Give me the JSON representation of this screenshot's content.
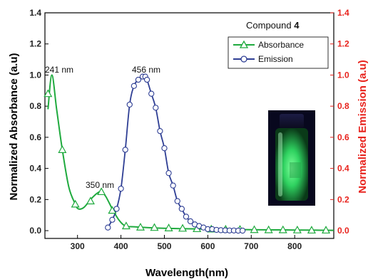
{
  "chart_data": {
    "type": "line",
    "title": "Compound",
    "title_bold": "4",
    "xlabel": "Wavelength(nm)",
    "ylabel": "Normalized Absorbance (a.u)",
    "y2label": "Normalized Emission (a.u)",
    "xlim": [
      225,
      890
    ],
    "ylim": [
      -0.05,
      1.4
    ],
    "y2lim": [
      -0.05,
      1.4
    ],
    "x_ticks": [
      300,
      400,
      500,
      600,
      700,
      800
    ],
    "y_ticks": [
      0.0,
      0.2,
      0.4,
      0.6,
      0.8,
      1.0,
      1.2,
      1.4
    ],
    "y_tick_labels": [
      "0.0",
      "0.2",
      "0.4",
      "0.6",
      "0.8",
      "1.0",
      "1.2",
      "1.4"
    ],
    "y2_tick_labels": [
      "0.0",
      "0.2",
      "0.4",
      "0.6",
      "0.8",
      "1.0",
      "1.2",
      "1.4"
    ],
    "grid": false,
    "legend_position": "top-right",
    "colors": {
      "absorbance": "#1faa3e",
      "emission": "#2e3e94",
      "right_axis": "#e8231d"
    },
    "series": [
      {
        "name": "Absorbance",
        "marker": "triangle",
        "x": [
          232,
          241,
          252,
          265,
          280,
          295,
          302,
          315,
          330,
          345,
          355,
          365,
          380,
          395,
          410,
          430,
          460,
          500,
          550,
          600,
          650,
          700,
          750,
          800,
          850,
          890
        ],
        "y": [
          0.78,
          1.0,
          0.78,
          0.52,
          0.28,
          0.17,
          0.14,
          0.15,
          0.2,
          0.24,
          0.25,
          0.22,
          0.14,
          0.07,
          0.03,
          0.025,
          0.02,
          0.015,
          0.012,
          0.01,
          0.008,
          0.006,
          0.005,
          0.004,
          0.003,
          0.002
        ],
        "marker_x": [
          232,
          265,
          295,
          330,
          355,
          380,
          412,
          445,
          477,
          510,
          542,
          575,
          608,
          641,
          674,
          707,
          740,
          773,
          806,
          839,
          872
        ],
        "marker_y": [
          0.88,
          0.52,
          0.17,
          0.19,
          0.25,
          0.13,
          0.03,
          0.022,
          0.02,
          0.017,
          0.015,
          0.012,
          0.01,
          0.009,
          0.008,
          0.006,
          0.005,
          0.005,
          0.004,
          0.003,
          0.003
        ]
      },
      {
        "name": "Emission",
        "marker": "circle",
        "x": [
          370,
          380,
          390,
          400,
          410,
          420,
          430,
          440,
          450,
          456,
          460,
          470,
          480,
          490,
          500,
          510,
          520,
          530,
          540,
          550,
          560,
          570,
          580,
          590,
          600,
          610,
          620,
          630,
          640,
          650,
          660,
          670,
          680
        ],
        "y": [
          0.02,
          0.07,
          0.14,
          0.27,
          0.52,
          0.81,
          0.93,
          0.97,
          0.99,
          0.99,
          0.97,
          0.88,
          0.79,
          0.64,
          0.53,
          0.37,
          0.29,
          0.19,
          0.14,
          0.09,
          0.06,
          0.04,
          0.03,
          0.02,
          0.01,
          0.01,
          0.005,
          0.003,
          0.002,
          0.001,
          0.001,
          0.0,
          0.0
        ]
      }
    ],
    "annotations": [
      {
        "text": "241 nm",
        "x": 241,
        "y": 1.0
      },
      {
        "text": "350 nm",
        "x": 350,
        "y": 0.25
      },
      {
        "text": "456 nm",
        "x": 456,
        "y": 0.99
      }
    ],
    "inset": {
      "kind": "photo",
      "subject": "glowing green vial"
    }
  }
}
